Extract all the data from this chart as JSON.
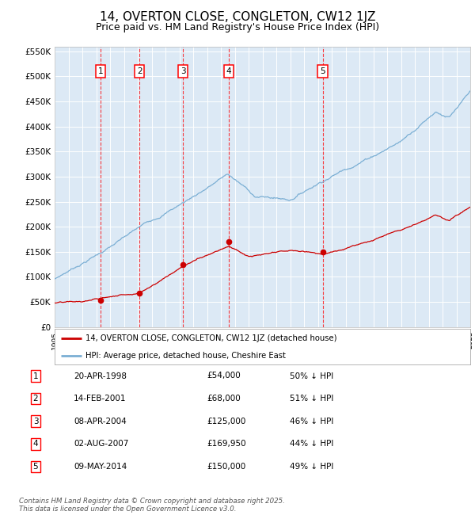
{
  "title": "14, OVERTON CLOSE, CONGLETON, CW12 1JZ",
  "subtitle": "Price paid vs. HM Land Registry's House Price Index (HPI)",
  "title_fontsize": 11,
  "subtitle_fontsize": 9,
  "bg_color": "#dce9f5",
  "fig_bg_color": "#ffffff",
  "grid_color": "#ffffff",
  "ylim": [
    0,
    560000
  ],
  "yticks": [
    0,
    50000,
    100000,
    150000,
    200000,
    250000,
    300000,
    350000,
    400000,
    450000,
    500000,
    550000
  ],
  "year_start": 1995,
  "year_end": 2025,
  "transactions": [
    {
      "label": "1",
      "year": 1998.3,
      "price": 54000,
      "date": "20-APR-1998",
      "pct": "50%"
    },
    {
      "label": "2",
      "year": 2001.12,
      "price": 68000,
      "date": "14-FEB-2001",
      "pct": "51%"
    },
    {
      "label": "3",
      "year": 2004.27,
      "price": 125000,
      "date": "08-APR-2004",
      "pct": "46%"
    },
    {
      "label": "4",
      "year": 2007.58,
      "price": 169950,
      "date": "02-AUG-2007",
      "pct": "44%"
    },
    {
      "label": "5",
      "year": 2014.35,
      "price": 150000,
      "date": "09-MAY-2014",
      "pct": "49%"
    }
  ],
  "red_color": "#cc0000",
  "blue_color": "#7bafd4",
  "legend_entries": [
    "14, OVERTON CLOSE, CONGLETON, CW12 1JZ (detached house)",
    "HPI: Average price, detached house, Cheshire East"
  ],
  "footer": "Contains HM Land Registry data © Crown copyright and database right 2025.\nThis data is licensed under the Open Government Licence v3.0.",
  "table_rows": [
    [
      "1",
      "20-APR-1998",
      "£54,000",
      "50% ↓ HPI"
    ],
    [
      "2",
      "14-FEB-2001",
      "£68,000",
      "51% ↓ HPI"
    ],
    [
      "3",
      "08-APR-2004",
      "£125,000",
      "46% ↓ HPI"
    ],
    [
      "4",
      "02-AUG-2007",
      "£169,950",
      "44% ↓ HPI"
    ],
    [
      "5",
      "09-MAY-2014",
      "£150,000",
      "49% ↓ HPI"
    ]
  ]
}
